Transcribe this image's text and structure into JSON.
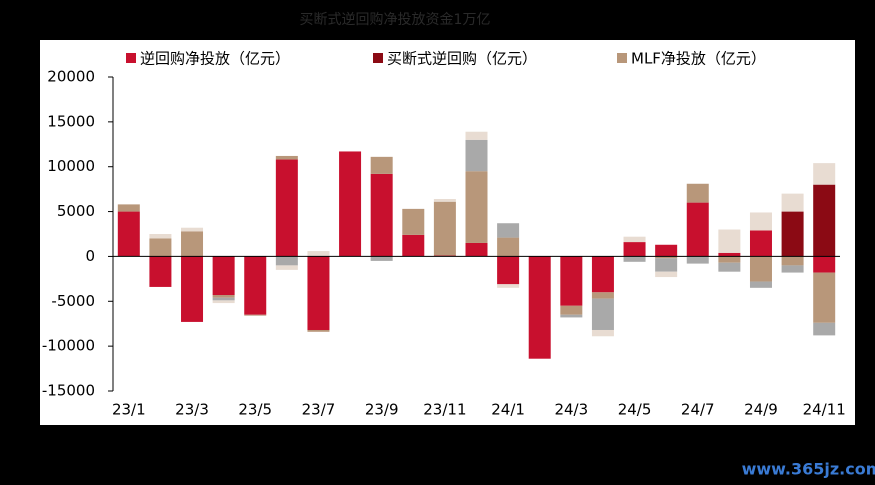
{
  "chart_data": {
    "type": "bar",
    "stacked": true,
    "title": "买断式逆回购净投放资金1万亿",
    "watermark": "www.365jz.com",
    "categories": [
      "23/1",
      null,
      "23/3",
      null,
      "23/5",
      null,
      "23/7",
      null,
      "23/9",
      null,
      "23/11",
      null,
      "24/1",
      null,
      "24/3",
      null,
      "24/5",
      null,
      "24/7",
      null,
      "24/9",
      null,
      "24/11"
    ],
    "series": [
      {
        "name": "逆回购净投放（亿元）",
        "color": "#c8102e",
        "values": [
          5000,
          -3400,
          -7300,
          -4300,
          -6500,
          10800,
          -8200,
          11700,
          9200,
          2400,
          100,
          1500,
          -3100,
          -11400,
          -5500,
          -4000,
          1600,
          1300,
          6000,
          400,
          2900,
          0,
          -1800
        ]
      },
      {
        "name": "买断式逆回购（亿元）",
        "color": "#8b0a14",
        "values": [
          0,
          0,
          0,
          0,
          0,
          0,
          0,
          0,
          0,
          0,
          0,
          0,
          0,
          0,
          0,
          0,
          0,
          0,
          0,
          0,
          0,
          5000,
          8000
        ]
      },
      {
        "name": "MLF净投放（亿元）",
        "color": "#b8977a",
        "values": [
          800,
          2000,
          2800,
          -300,
          -100,
          400,
          -200,
          0,
          1900,
          2900,
          6000,
          8000,
          2100,
          0,
          -1000,
          -700,
          0,
          -200,
          2100,
          -700,
          -2800,
          -1000,
          -5600
        ]
      },
      {
        "color": "#a9a9a9",
        "values": [
          0,
          0,
          0,
          -300,
          0,
          -1000,
          0,
          0,
          -500,
          0,
          0,
          3500,
          1600,
          0,
          -300,
          -3500,
          -600,
          -1500,
          -800,
          -1000,
          -700,
          -800,
          -1400
        ]
      },
      {
        "color": "#e8dcd2",
        "values": [
          0,
          500,
          400,
          -300,
          0,
          -500,
          600,
          0,
          0,
          0,
          300,
          900,
          -400,
          0,
          0,
          -700,
          600,
          -600,
          0,
          2600,
          2000,
          2000,
          2400
        ]
      }
    ],
    "ylim": [
      -15000,
      20000
    ],
    "yticks": [
      -15000,
      -10000,
      -5000,
      0,
      5000,
      10000,
      15000,
      20000
    ]
  }
}
